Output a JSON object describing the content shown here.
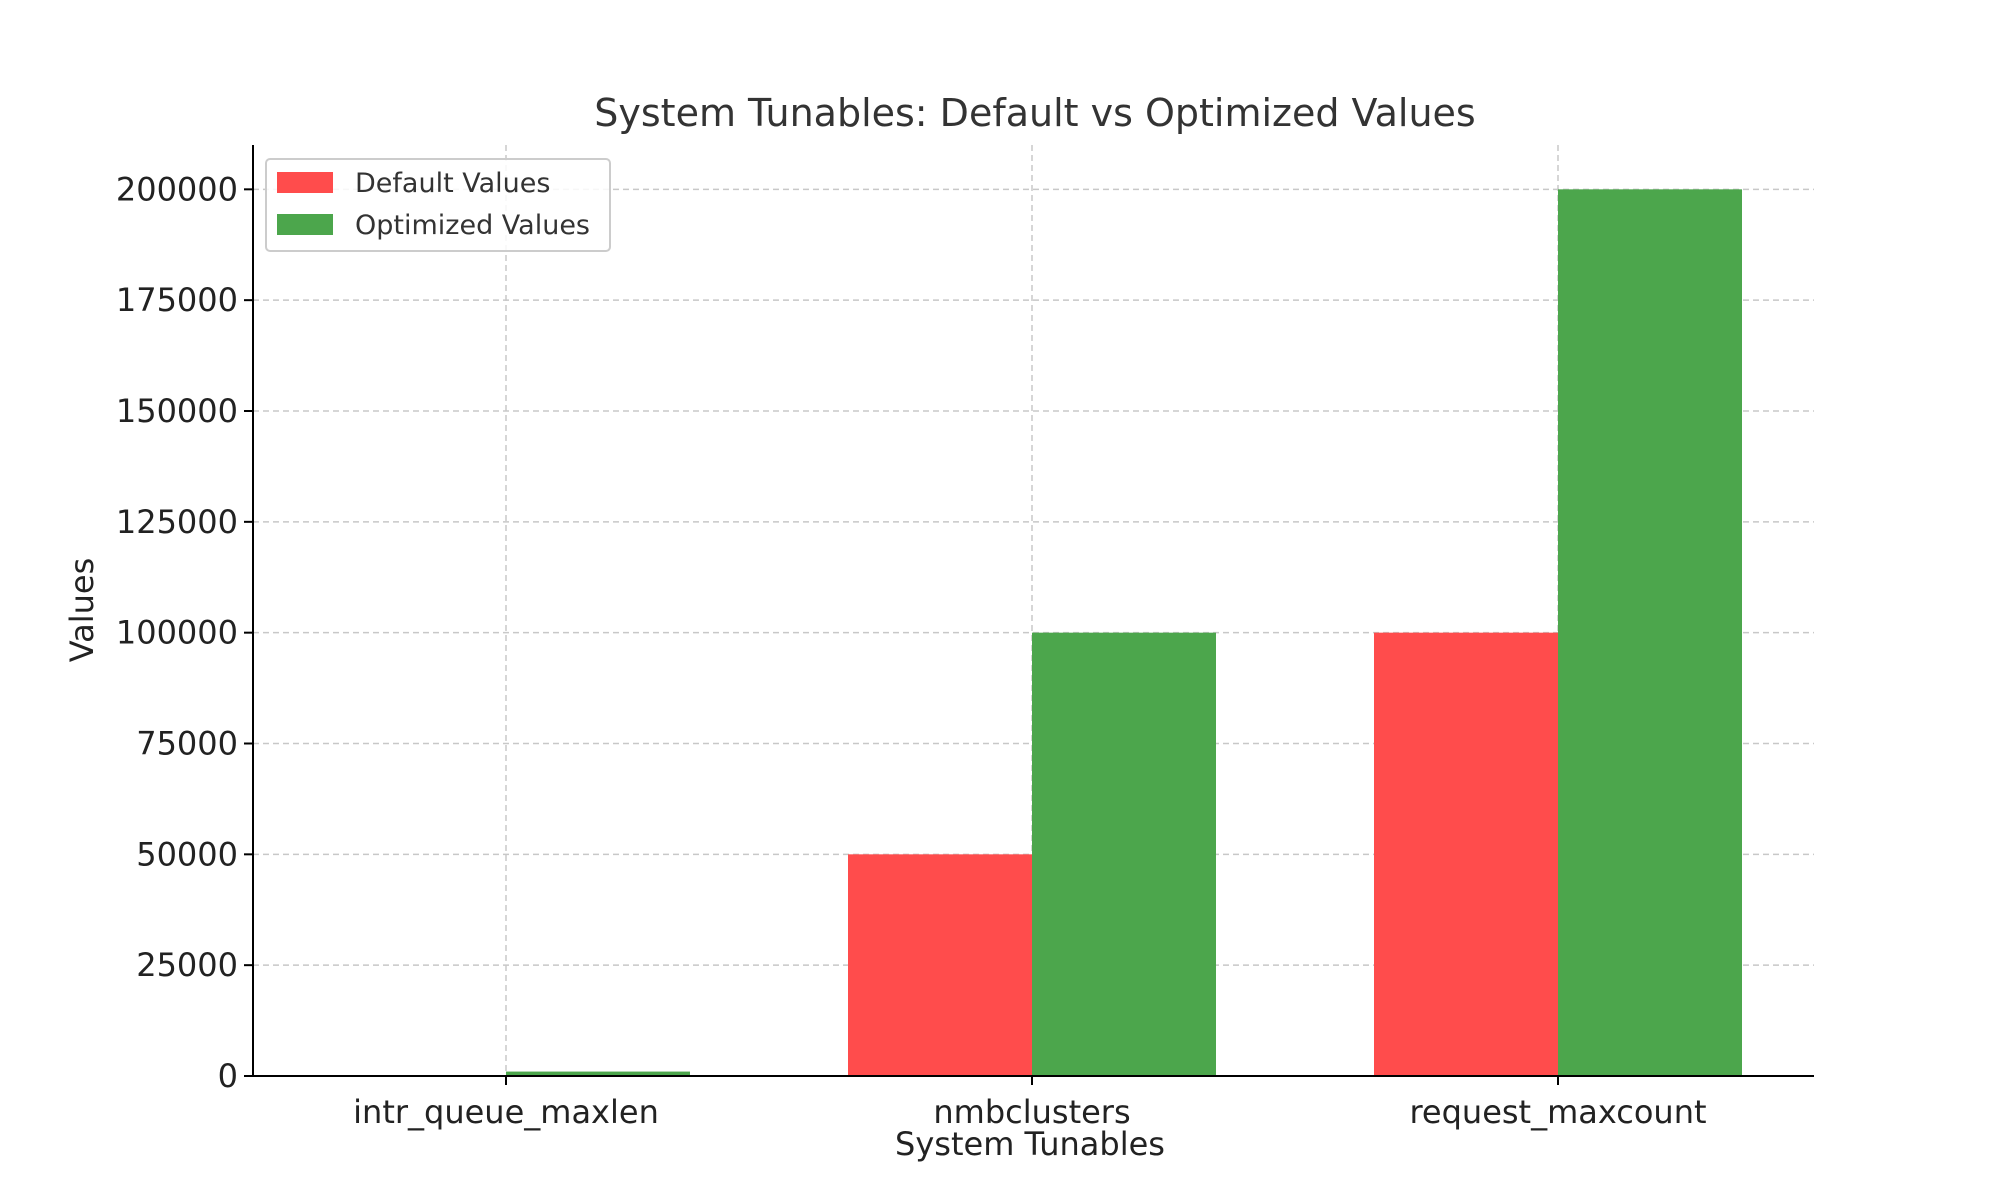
{
  "chart_data": {
    "type": "bar",
    "title": "System Tunables: Default vs Optimized Values",
    "xlabel": "System Tunables",
    "ylabel": "Values",
    "categories": [
      "intr_queue_maxlen",
      "nmbclusters",
      "request_maxcount"
    ],
    "series": [
      {
        "name": "Default Values",
        "values": [
          50,
          50000,
          100000
        ],
        "color": "#ff4c4c"
      },
      {
        "name": "Optimized Values",
        "values": [
          1000,
          100000,
          200000
        ],
        "color": "#4ca64c"
      }
    ],
    "ylim": [
      0,
      210000
    ],
    "yticks": [
      0,
      25000,
      50000,
      75000,
      100000,
      125000,
      150000,
      175000,
      200000
    ],
    "grid": true,
    "legend_position": "top-left"
  }
}
